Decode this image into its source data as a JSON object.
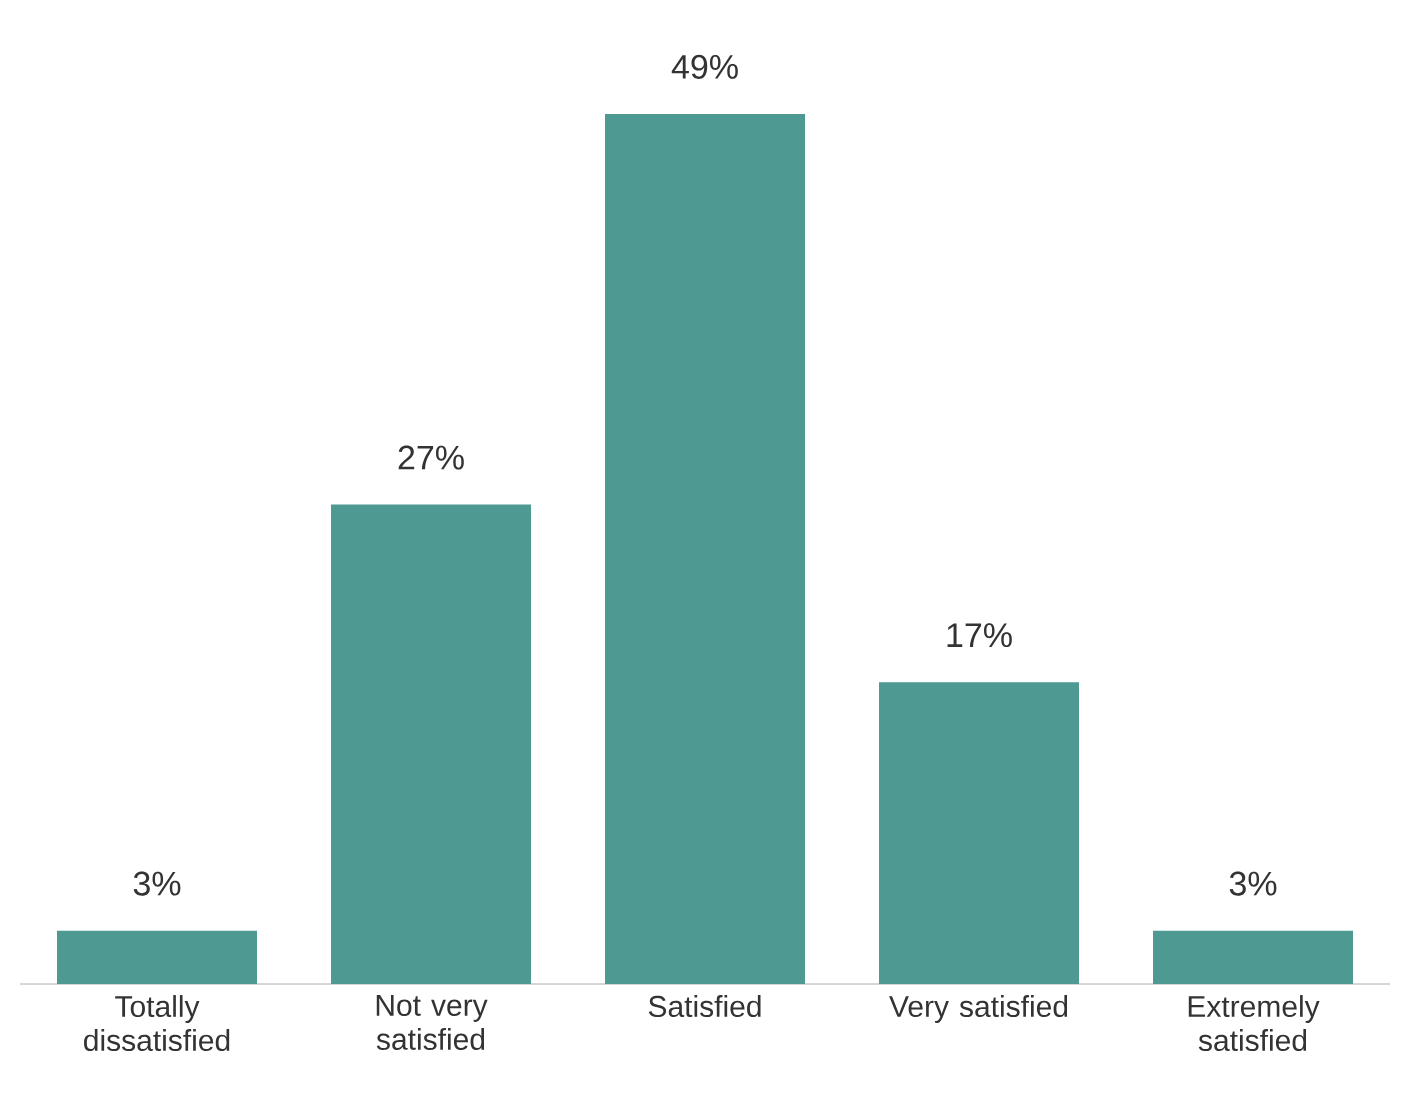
{
  "chart_data": {
    "type": "bar",
    "categories": [
      "Totally dissatisfied",
      "Not very satisfied",
      "Satisfied",
      "Very satisfied",
      "Extremely satisfied"
    ],
    "values": [
      3,
      27,
      49,
      17,
      3
    ],
    "value_labels": [
      "3%",
      "27%",
      "49%",
      "17%",
      "3%"
    ],
    "color": "#4e9a93"
  }
}
